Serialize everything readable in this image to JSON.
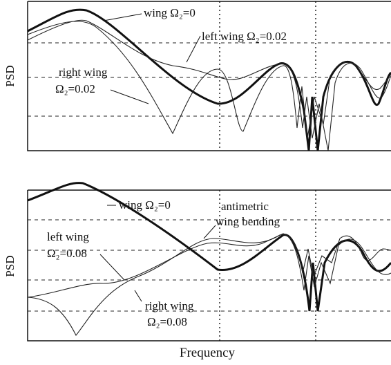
{
  "panels": [
    {
      "ylabel": "PSD",
      "annotations": [
        "wing Ω₂=0",
        "left wing  Ω₂=0.02",
        "right wing",
        "Ω₂=0.02"
      ]
    },
    {
      "ylabel": "PSD",
      "annotations": [
        "wing Ω₂=0",
        "antimetric",
        "wing bending",
        "left wing",
        "Ω₂=0.08",
        "right wing",
        "Ω₂=0.08"
      ]
    }
  ],
  "xlabel": "Frequency"
}
